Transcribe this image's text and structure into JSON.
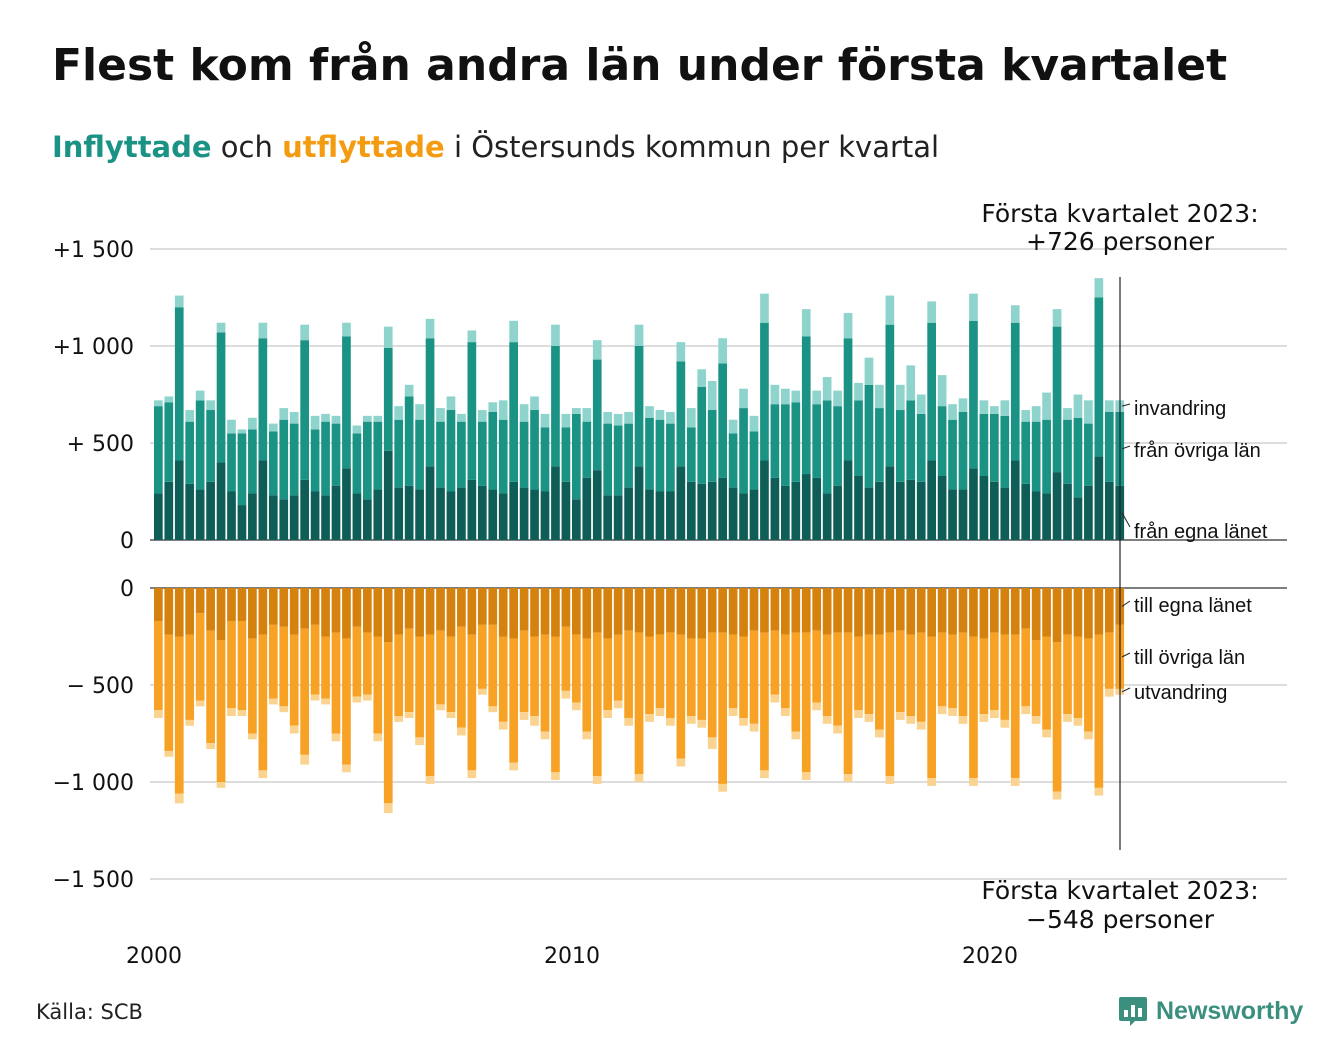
{
  "title": "Flest kom från andra län under första kvartalet",
  "subtitle": {
    "in_word": "Inflyttade",
    "and_word": "och",
    "out_word": "utflyttade",
    "rest": "i Östersunds kommun per kvartal"
  },
  "annotation_top": {
    "line1": "Första kvartalet 2023:",
    "line2": "+726 personer"
  },
  "annotation_bottom": {
    "line1": "Första kvartalet 2023:",
    "line2": "−548 personer"
  },
  "source": "Källa: SCB",
  "logo_text": "Newsworthy",
  "colors": {
    "in_own_county": "#0e5e57",
    "in_other_counties": "#1a9385",
    "in_immigration": "#8fd4cc",
    "out_own_county": "#d4810e",
    "out_other_counties": "#f7a125",
    "out_emigration": "#f9d38f"
  },
  "chart_data": {
    "type": "bar",
    "stacked": true,
    "x_unit": "quarter",
    "x_start": "2000 Q1",
    "x_ticks": [
      "2000",
      "2010",
      "2020"
    ],
    "top_panel": {
      "y_ticks": [
        0,
        500,
        1000,
        1500
      ],
      "y_tick_labels": [
        "0",
        "+  500",
        "+1 000",
        "+1 500"
      ],
      "ylim": [
        0,
        1500
      ],
      "series": [
        {
          "name": "från egna länet",
          "values": [
            240,
            300,
            410,
            290,
            260,
            300,
            400,
            250,
            180,
            240,
            410,
            230,
            210,
            230,
            310,
            250,
            230,
            280,
            370,
            240,
            210,
            260,
            460,
            270,
            280,
            260,
            380,
            270,
            250,
            270,
            310,
            280,
            260,
            240,
            300,
            270,
            260,
            250,
            380,
            300,
            210,
            320,
            360,
            230,
            230,
            270,
            380,
            260,
            250,
            250,
            380,
            300,
            290,
            300,
            320,
            270,
            240,
            260,
            410,
            320,
            280,
            300,
            340,
            320,
            240,
            280,
            410,
            330,
            270,
            300,
            380,
            300,
            310,
            300,
            410,
            330,
            260,
            260,
            370,
            330,
            300,
            270,
            410,
            290,
            250,
            240,
            350,
            290,
            220,
            280,
            430,
            300,
            280
          ]
        },
        {
          "name": "från övriga län",
          "values": [
            450,
            410,
            790,
            320,
            460,
            370,
            670,
            300,
            370,
            330,
            630,
            330,
            410,
            370,
            720,
            320,
            380,
            320,
            680,
            310,
            400,
            350,
            530,
            350,
            460,
            360,
            660,
            340,
            420,
            340,
            710,
            330,
            400,
            380,
            720,
            340,
            410,
            330,
            620,
            280,
            440,
            290,
            570,
            370,
            360,
            330,
            620,
            370,
            370,
            350,
            540,
            280,
            500,
            370,
            590,
            280,
            440,
            300,
            710,
            380,
            420,
            410,
            710,
            380,
            480,
            410,
            630,
            390,
            530,
            380,
            730,
            370,
            410,
            350,
            710,
            360,
            360,
            400,
            760,
            320,
            350,
            370,
            710,
            320,
            360,
            380,
            750,
            330,
            410,
            320,
            820,
            360,
            380
          ]
        },
        {
          "name": "invandring",
          "values": [
            30,
            30,
            60,
            60,
            50,
            50,
            50,
            70,
            20,
            60,
            80,
            40,
            60,
            60,
            80,
            70,
            40,
            40,
            70,
            40,
            30,
            30,
            110,
            70,
            60,
            80,
            100,
            70,
            70,
            40,
            60,
            60,
            50,
            100,
            110,
            90,
            70,
            70,
            110,
            70,
            30,
            70,
            100,
            60,
            60,
            60,
            110,
            60,
            50,
            60,
            100,
            100,
            90,
            150,
            130,
            70,
            100,
            80,
            150,
            100,
            80,
            60,
            140,
            70,
            120,
            80,
            130,
            90,
            140,
            120,
            150,
            130,
            180,
            100,
            110,
            160,
            80,
            70,
            140,
            70,
            40,
            80,
            90,
            60,
            80,
            140,
            90,
            60,
            120,
            120,
            100,
            60,
            60
          ]
        }
      ]
    },
    "bottom_panel": {
      "y_ticks": [
        0,
        -500,
        -1000,
        -1500
      ],
      "y_tick_labels": [
        "0",
        "−  500",
        "−1 000",
        "−1 500"
      ],
      "ylim": [
        -1500,
        0
      ],
      "series": [
        {
          "name": "till egna länet",
          "values": [
            -170,
            -240,
            -250,
            -240,
            -130,
            -220,
            -270,
            -170,
            -170,
            -260,
            -240,
            -190,
            -200,
            -240,
            -210,
            -190,
            -250,
            -230,
            -260,
            -200,
            -230,
            -250,
            -280,
            -240,
            -210,
            -250,
            -240,
            -220,
            -250,
            -200,
            -240,
            -190,
            -190,
            -250,
            -260,
            -220,
            -250,
            -240,
            -250,
            -200,
            -240,
            -260,
            -230,
            -260,
            -240,
            -220,
            -230,
            -250,
            -240,
            -230,
            -240,
            -260,
            -260,
            -230,
            -230,
            -240,
            -250,
            -220,
            -230,
            -220,
            -240,
            -230,
            -230,
            -220,
            -240,
            -230,
            -230,
            -250,
            -240,
            -240,
            -230,
            -220,
            -240,
            -230,
            -250,
            -230,
            -240,
            -230,
            -250,
            -260,
            -230,
            -240,
            -240,
            -210,
            -270,
            -250,
            -280,
            -240,
            -250,
            -260,
            -240,
            -230,
            -190
          ]
        },
        {
          "name": "till övriga län",
          "values": [
            -460,
            -600,
            -810,
            -440,
            -450,
            -580,
            -730,
            -450,
            -460,
            -490,
            -700,
            -380,
            -410,
            -470,
            -650,
            -360,
            -320,
            -520,
            -650,
            -360,
            -320,
            -500,
            -830,
            -420,
            -430,
            -520,
            -730,
            -380,
            -390,
            -520,
            -700,
            -330,
            -420,
            -440,
            -640,
            -420,
            -410,
            -500,
            -700,
            -330,
            -350,
            -480,
            -740,
            -370,
            -340,
            -450,
            -730,
            -400,
            -380,
            -440,
            -640,
            -400,
            -420,
            -540,
            -780,
            -380,
            -420,
            -480,
            -710,
            -330,
            -380,
            -510,
            -720,
            -370,
            -420,
            -480,
            -730,
            -380,
            -410,
            -490,
            -740,
            -420,
            -420,
            -460,
            -730,
            -380,
            -380,
            -430,
            -730,
            -390,
            -400,
            -440,
            -740,
            -400,
            -390,
            -480,
            -770,
            -410,
            -420,
            -480,
            -790,
            -290,
            -330
          ]
        },
        {
          "name": "utvandring",
          "values": [
            -40,
            -30,
            -50,
            -30,
            -30,
            -30,
            -30,
            -40,
            -30,
            -30,
            -40,
            -30,
            -30,
            -40,
            -50,
            -30,
            -30,
            -40,
            -40,
            -30,
            -30,
            -40,
            -50,
            -30,
            -30,
            -40,
            -40,
            -30,
            -30,
            -40,
            -40,
            -30,
            -30,
            -40,
            -40,
            -40,
            -50,
            -40,
            -40,
            -40,
            -40,
            -40,
            -40,
            -40,
            -40,
            -40,
            -40,
            -40,
            -40,
            -40,
            -40,
            -40,
            -40,
            -60,
            -40,
            -40,
            -40,
            -40,
            -40,
            -40,
            -40,
            -40,
            -40,
            -40,
            -40,
            -40,
            -40,
            -40,
            -40,
            -40,
            -40,
            -40,
            -40,
            -40,
            -40,
            -40,
            -40,
            -40,
            -40,
            -40,
            -40,
            -40,
            -40,
            -40,
            -40,
            -40,
            -40,
            -40,
            -40,
            -40,
            -40,
            -40,
            -30
          ]
        }
      ]
    }
  }
}
